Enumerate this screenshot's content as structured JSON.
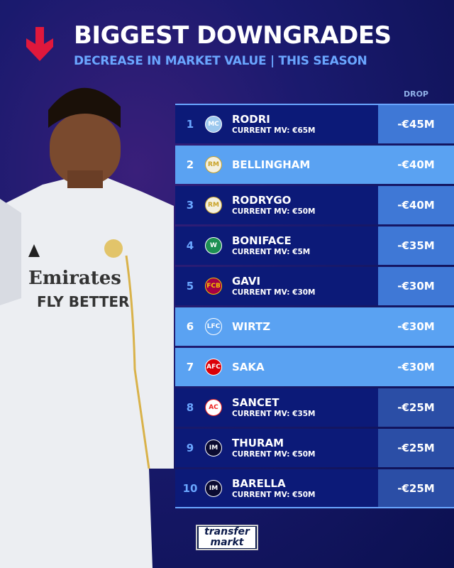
{
  "header": {
    "title": "BIGGEST DOWNGRADES",
    "subtitle": "DECREASE IN MARKET VALUE | THIS SEASON",
    "icon": "down-arrow-icon",
    "accent": "#e0183c"
  },
  "table": {
    "drop_header": "DROP",
    "rows": [
      {
        "rank": "1",
        "club": "Manchester City",
        "name": "RODRI",
        "mv": "CURRENT MV: €65M",
        "drop": "-€45M",
        "style": "dark"
      },
      {
        "rank": "2",
        "club": "Real Madrid",
        "name": "BELLINGHAM",
        "mv": "",
        "drop": "-€40M",
        "style": "light"
      },
      {
        "rank": "3",
        "club": "Real Madrid",
        "name": "RODRYGO",
        "mv": "CURRENT MV: €50M",
        "drop": "-€40M",
        "style": "dark"
      },
      {
        "rank": "4",
        "club": "Werder Bremen",
        "name": "BONIFACE",
        "mv": "CURRENT MV: €5M",
        "drop": "-€35M",
        "style": "dark"
      },
      {
        "rank": "5",
        "club": "Barcelona",
        "name": "GAVI",
        "mv": "CURRENT MV: €30M",
        "drop": "-€30M",
        "style": "dark"
      },
      {
        "rank": "6",
        "club": "Liverpool",
        "name": "WIRTZ",
        "mv": "",
        "drop": "-€30M",
        "style": "light"
      },
      {
        "rank": "7",
        "club": "Arsenal",
        "name": "SAKA",
        "mv": "",
        "drop": "-€30M",
        "style": "light"
      },
      {
        "rank": "8",
        "club": "Athletic Club",
        "name": "SANCET",
        "mv": "CURRENT MV: €35M",
        "drop": "-€25M",
        "style": "dark low"
      },
      {
        "rank": "9",
        "club": "Inter",
        "name": "THURAM",
        "mv": "CURRENT MV: €50M",
        "drop": "-€25M",
        "style": "dark low"
      },
      {
        "rank": "10",
        "club": "Inter",
        "name": "BARELLA",
        "mv": "CURRENT MV: €50M",
        "drop": "-€25M",
        "style": "dark low"
      }
    ]
  },
  "player_image": {
    "jersey_text": "Emirates FLY BETTER"
  },
  "logo": {
    "line1": "transfer",
    "line2": "markt"
  }
}
